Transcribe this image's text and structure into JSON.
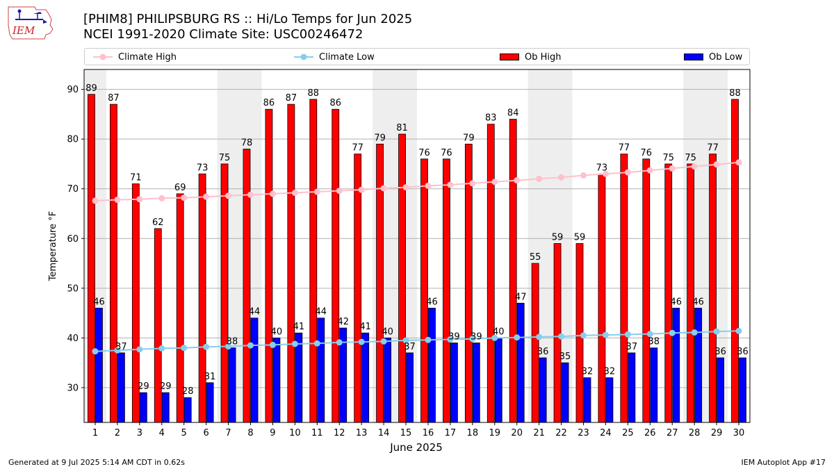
{
  "logo": {
    "text": "IEM"
  },
  "title": {
    "line1": "[PHIM8] PHILIPSBURG RS :: Hi/Lo Temps for Jun 2025",
    "line2": "NCEI 1991-2020 Climate Site: USC00246472"
  },
  "legend": {
    "climate_high": "Climate High",
    "climate_low": "Climate Low",
    "ob_high": "Ob High",
    "ob_low": "Ob Low"
  },
  "colors": {
    "ob_high": "#ff0000",
    "ob_low": "#0000ff",
    "climate_high": "#ffc0cb",
    "climate_low": "#87ceeb",
    "weekend_band": "#eeeeee",
    "grid": "#b0b0b0"
  },
  "footer": {
    "left": "Generated at 9 Jul 2025 5:14 AM CDT in 0.62s",
    "right": "IEM Autoplot App #17"
  },
  "chart_data": {
    "type": "bar",
    "xlabel": "June 2025",
    "ylabel": "Temperature °F",
    "ylim": [
      23,
      94
    ],
    "yticks": [
      30,
      40,
      50,
      60,
      70,
      80,
      90
    ],
    "grid": true,
    "legend_position": "top",
    "categories": [
      "1",
      "2",
      "3",
      "4",
      "5",
      "6",
      "7",
      "8",
      "9",
      "10",
      "11",
      "12",
      "13",
      "14",
      "15",
      "16",
      "17",
      "18",
      "19",
      "20",
      "21",
      "22",
      "23",
      "24",
      "25",
      "26",
      "27",
      "28",
      "29",
      "30"
    ],
    "shaded_days": [
      1,
      7,
      8,
      14,
      15,
      21,
      22,
      28,
      29
    ],
    "series": [
      {
        "name": "Ob High",
        "kind": "bar",
        "values": [
          89,
          87,
          71,
          62,
          69,
          73,
          75,
          78,
          86,
          87,
          88,
          86,
          77,
          79,
          81,
          76,
          76,
          79,
          83,
          84,
          55,
          59,
          59,
          73,
          77,
          76,
          75,
          75,
          77,
          88
        ],
        "labels": [
          "89",
          "87",
          "71",
          "62",
          "69",
          "73",
          "75",
          "78",
          "86",
          "87",
          "88",
          "86",
          "77",
          "79",
          "81",
          "76",
          "76",
          "79",
          "83",
          "84",
          "55",
          "59",
          "59",
          "73",
          "77",
          "76",
          "75",
          "75",
          "77",
          "88"
        ]
      },
      {
        "name": "Ob Low",
        "kind": "bar",
        "values": [
          46,
          37,
          29,
          29,
          28,
          31,
          38,
          44,
          40,
          41,
          44,
          42,
          41,
          40,
          37,
          46,
          39,
          39,
          40,
          47,
          36,
          35,
          32,
          32,
          37,
          38,
          46,
          46,
          36,
          36
        ],
        "labels": [
          "46",
          "37",
          "29",
          "29",
          "28",
          "31",
          "38",
          "44",
          "40",
          "41",
          "44",
          "42",
          "41",
          "40",
          "37",
          "46",
          "39",
          "39",
          "40",
          "47",
          "36",
          "35",
          "32",
          "32",
          "37",
          "38",
          "46",
          "46",
          "36",
          "36"
        ]
      },
      {
        "name": "Climate High",
        "kind": "line",
        "values": [
          67.6,
          67.8,
          67.9,
          68.1,
          68.2,
          68.4,
          68.6,
          68.8,
          69.0,
          69.2,
          69.4,
          69.6,
          69.8,
          70.1,
          70.3,
          70.6,
          70.8,
          71.1,
          71.4,
          71.7,
          72.0,
          72.3,
          72.7,
          73.0,
          73.3,
          73.7,
          74.1,
          74.5,
          74.9,
          75.3
        ]
      },
      {
        "name": "Climate Low",
        "kind": "line",
        "values": [
          37.3,
          37.5,
          37.7,
          37.9,
          38.0,
          38.2,
          38.3,
          38.5,
          38.6,
          38.8,
          38.9,
          39.1,
          39.2,
          39.3,
          39.5,
          39.6,
          39.7,
          39.8,
          40.0,
          40.1,
          40.2,
          40.3,
          40.5,
          40.6,
          40.7,
          40.8,
          41.0,
          41.1,
          41.3,
          41.4
        ]
      }
    ]
  }
}
